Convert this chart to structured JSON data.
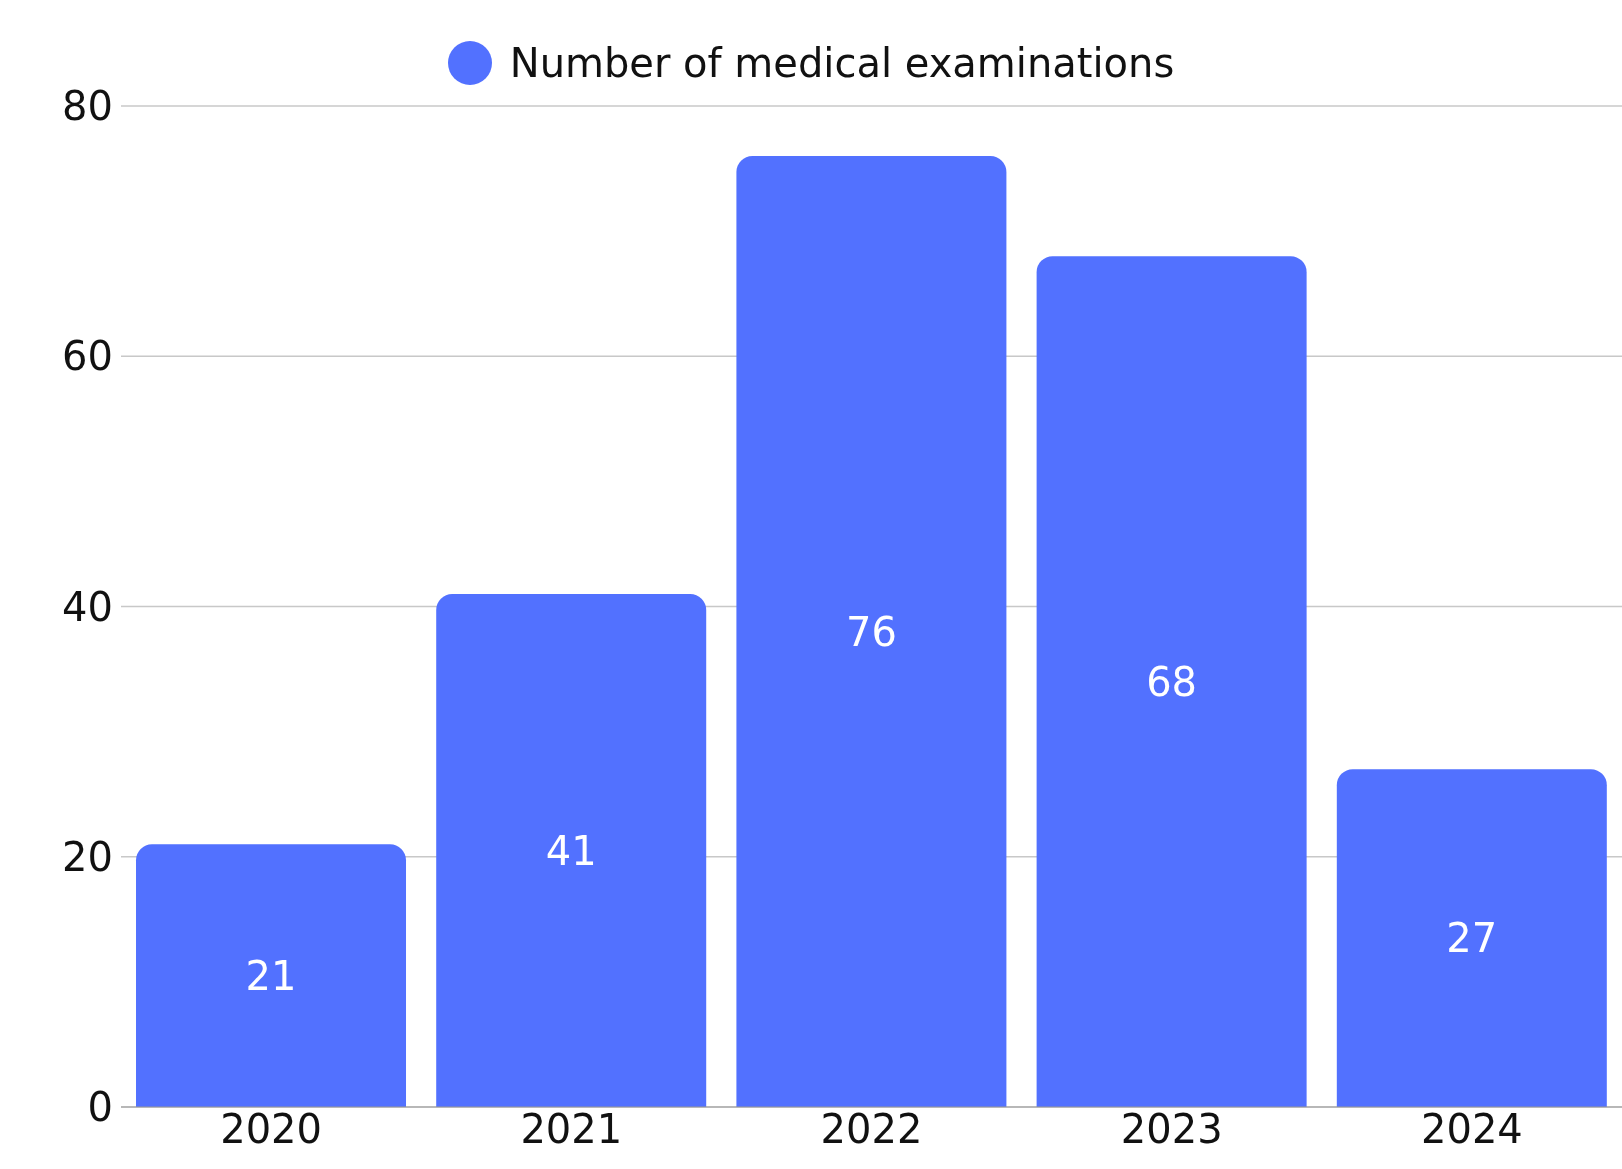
{
  "chart_data": {
    "type": "bar",
    "categories": [
      "2020",
      "2021",
      "2022",
      "2023",
      "2024"
    ],
    "series": [
      {
        "name": "Number of medical examinations",
        "color": "#5271ff",
        "values": [
          21,
          41,
          76,
          68,
          27
        ]
      }
    ],
    "ylim": [
      0,
      80
    ],
    "yticks": [
      0,
      20,
      40,
      60,
      80
    ],
    "grid": "y",
    "legend": "top",
    "data_labels": true
  }
}
